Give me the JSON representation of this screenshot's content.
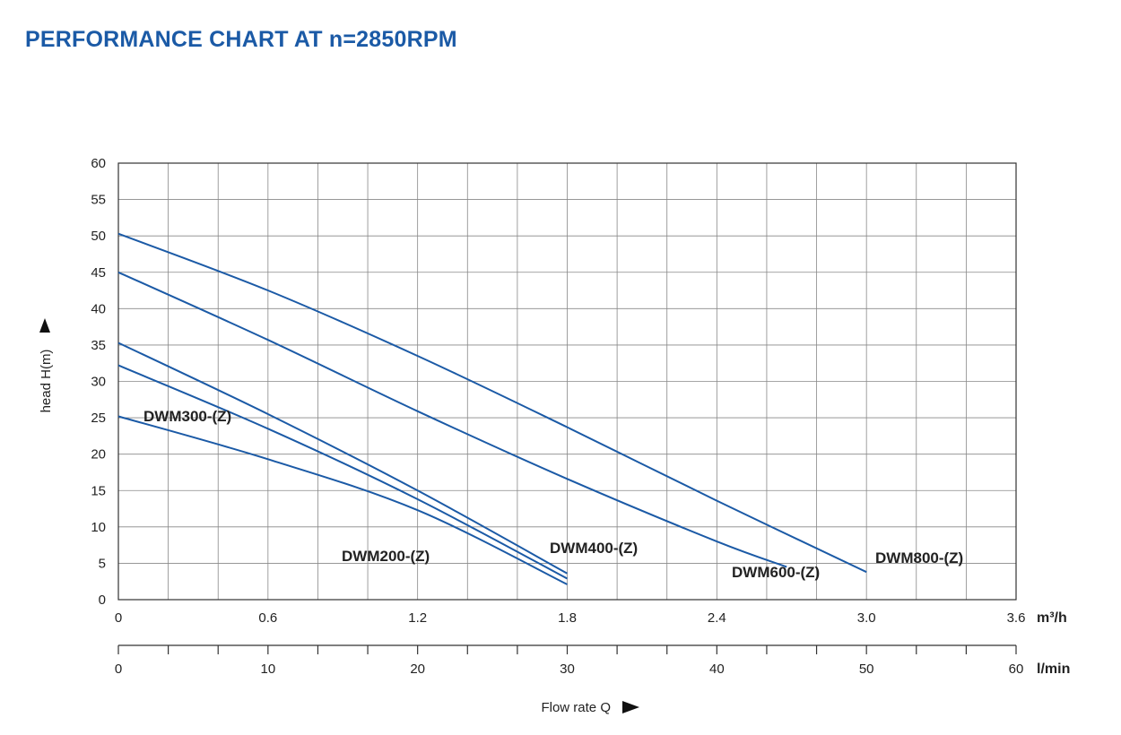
{
  "page": {
    "title": "PERFORMANCE CHART AT n=2850RPM",
    "title_color": "#1b5aa6"
  },
  "chart_data": {
    "type": "line",
    "title": "PERFORMANCE CHART AT n=2850RPM",
    "ylabel": "head H(m)",
    "xlabel": "Flow rate Q",
    "x_unit_primary": "m³/h",
    "x_unit_secondary": "l/min",
    "xlim": [
      0,
      3.6
    ],
    "ylim": [
      0,
      60
    ],
    "x_ticks": [
      "0",
      "0.6",
      "1.2",
      "1.8",
      "2.4",
      "3.0",
      "3.6"
    ],
    "x_tick_values": [
      0,
      0.6,
      1.2,
      1.8,
      2.4,
      3.0,
      3.6
    ],
    "x2_ticks": [
      "0",
      "10",
      "20",
      "30",
      "40",
      "50",
      "60"
    ],
    "y_ticks": [
      "0",
      "5",
      "10",
      "15",
      "20",
      "25",
      "30",
      "35",
      "40",
      "45",
      "50",
      "55",
      "60"
    ],
    "y_tick_values": [
      0,
      5,
      10,
      15,
      20,
      25,
      30,
      35,
      40,
      45,
      50,
      55,
      60
    ],
    "grid": true,
    "line_color": "#1b5aa6",
    "series": [
      {
        "name": "DWM200-(Z)",
        "points": [
          [
            0,
            25.2
          ],
          [
            0.6,
            19.3
          ],
          [
            1.2,
            12.3
          ],
          [
            1.8,
            2.1
          ]
        ]
      },
      {
        "name": "DWM300-(Z)",
        "points": [
          [
            0,
            32.2
          ],
          [
            0.6,
            23.5
          ],
          [
            1.2,
            13.8
          ],
          [
            1.8,
            2.9
          ]
        ]
      },
      {
        "name": "DWM400-(Z)",
        "points": [
          [
            0,
            35.3
          ],
          [
            0.6,
            25.5
          ],
          [
            1.2,
            15.0
          ],
          [
            1.8,
            3.6
          ]
        ]
      },
      {
        "name": "DWM600-(Z)",
        "points": [
          [
            0,
            45.0
          ],
          [
            0.6,
            35.7
          ],
          [
            1.2,
            25.9
          ],
          [
            1.8,
            16.6
          ],
          [
            2.4,
            8.0
          ],
          [
            2.68,
            4.5
          ]
        ]
      },
      {
        "name": "DWM800-(Z)",
        "points": [
          [
            0,
            50.3
          ],
          [
            0.6,
            42.5
          ],
          [
            1.2,
            33.5
          ],
          [
            1.8,
            23.7
          ],
          [
            2.4,
            13.6
          ],
          [
            3.0,
            3.8
          ]
        ]
      }
    ]
  }
}
